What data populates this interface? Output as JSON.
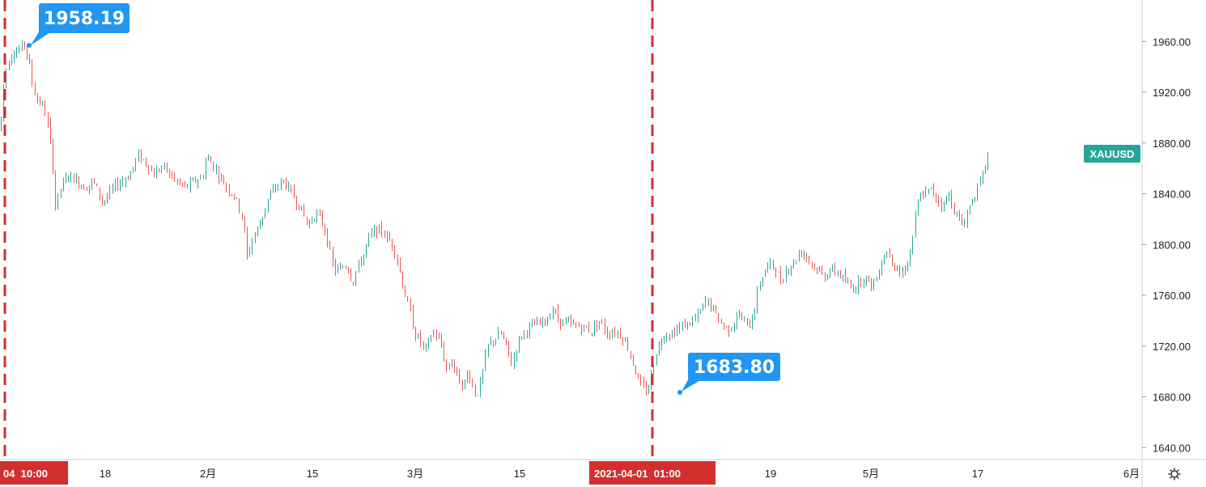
{
  "chart_data": {
    "type": "candlestick",
    "symbol": "XAUUSD",
    "price_axis": {
      "ticks": [
        1960,
        1920,
        1880,
        1840,
        1800,
        1760,
        1720,
        1680,
        1640
      ],
      "labels": [
        "1960.00",
        "1920.00",
        "1880.00",
        "1840.00",
        "1800.00",
        "1760.00",
        "1720.00",
        "1680.00",
        "1640.00"
      ]
    },
    "time_axis_labels": [
      "18",
      "2月",
      "15",
      "3月",
      "15",
      "19",
      "5月",
      "17",
      "6月"
    ],
    "crosshair_left_label": "04  10:00",
    "crosshair_right_label": "2021-04-01  01:00",
    "callouts": {
      "high": "1958.19",
      "low": "1683.80"
    },
    "last_price_tag": "XAUUSD",
    "colors": {
      "up": "#26a69a",
      "down": "#ef5350",
      "callout": "#2196f3",
      "marker": "#d32f2f",
      "tag": "#26a69a"
    },
    "price_path": [
      [
        0,
        1890
      ],
      [
        3,
        1920
      ],
      [
        6,
        1935
      ],
      [
        10,
        1945
      ],
      [
        15,
        1952
      ],
      [
        20,
        1952
      ],
      [
        25,
        1955
      ],
      [
        30,
        1958
      ],
      [
        35,
        1945
      ],
      [
        40,
        1925
      ],
      [
        45,
        1915
      ],
      [
        50,
        1912
      ],
      [
        55,
        1905
      ],
      [
        60,
        1890
      ],
      [
        65,
        1860
      ],
      [
        68,
        1830
      ],
      [
        75,
        1845
      ],
      [
        85,
        1855
      ],
      [
        95,
        1850
      ],
      [
        105,
        1845
      ],
      [
        115,
        1850
      ],
      [
        125,
        1835
      ],
      [
        130,
        1835
      ],
      [
        140,
        1845
      ],
      [
        150,
        1850
      ],
      [
        160,
        1855
      ],
      [
        170,
        1870
      ],
      [
        180,
        1865
      ],
      [
        190,
        1855
      ],
      [
        200,
        1862
      ],
      [
        210,
        1855
      ],
      [
        220,
        1848
      ],
      [
        230,
        1845
      ],
      [
        240,
        1850
      ],
      [
        250,
        1853
      ],
      [
        255,
        1870
      ],
      [
        260,
        1865
      ],
      [
        270,
        1855
      ],
      [
        280,
        1845
      ],
      [
        290,
        1838
      ],
      [
        300,
        1820
      ],
      [
        305,
        1790
      ],
      [
        312,
        1805
      ],
      [
        320,
        1815
      ],
      [
        330,
        1835
      ],
      [
        340,
        1845
      ],
      [
        350,
        1850
      ],
      [
        360,
        1840
      ],
      [
        370,
        1830
      ],
      [
        380,
        1815
      ],
      [
        390,
        1825
      ],
      [
        400,
        1815
      ],
      [
        405,
        1800
      ],
      [
        412,
        1780
      ],
      [
        420,
        1780
      ],
      [
        428,
        1785
      ],
      [
        435,
        1770
      ],
      [
        440,
        1780
      ],
      [
        448,
        1790
      ],
      [
        455,
        1805
      ],
      [
        462,
        1810
      ],
      [
        470,
        1812
      ],
      [
        478,
        1805
      ],
      [
        485,
        1800
      ],
      [
        492,
        1785
      ],
      [
        498,
        1765
      ],
      [
        505,
        1750
      ],
      [
        512,
        1730
      ],
      [
        518,
        1725
      ],
      [
        525,
        1715
      ],
      [
        530,
        1725
      ],
      [
        536,
        1732
      ],
      [
        545,
        1720
      ],
      [
        552,
        1700
      ],
      [
        558,
        1710
      ],
      [
        565,
        1695
      ],
      [
        572,
        1688
      ],
      [
        578,
        1700
      ],
      [
        583,
        1690
      ],
      [
        588,
        1680
      ],
      [
        595,
        1695
      ],
      [
        602,
        1720
      ],
      [
        610,
        1725
      ],
      [
        618,
        1730
      ],
      [
        625,
        1720
      ],
      [
        632,
        1705
      ],
      [
        638,
        1720
      ],
      [
        645,
        1730
      ],
      [
        655,
        1735
      ],
      [
        665,
        1738
      ],
      [
        675,
        1740
      ],
      [
        682,
        1750
      ],
      [
        690,
        1740
      ],
      [
        700,
        1738
      ],
      [
        710,
        1736
      ],
      [
        720,
        1735
      ],
      [
        730,
        1732
      ],
      [
        740,
        1740
      ],
      [
        750,
        1730
      ],
      [
        760,
        1732
      ],
      [
        768,
        1728
      ],
      [
        775,
        1720
      ],
      [
        780,
        1710
      ],
      [
        785,
        1700
      ],
      [
        790,
        1690
      ],
      [
        795,
        1685
      ],
      [
        800,
        1685
      ],
      [
        805,
        1700
      ],
      [
        810,
        1715
      ],
      [
        815,
        1722
      ],
      [
        820,
        1730
      ],
      [
        830,
        1730
      ],
      [
        840,
        1735
      ],
      [
        850,
        1738
      ],
      [
        860,
        1742
      ],
      [
        866,
        1748
      ],
      [
        872,
        1756
      ],
      [
        880,
        1750
      ],
      [
        888,
        1740
      ],
      [
        895,
        1735
      ],
      [
        902,
        1733
      ],
      [
        910,
        1745
      ],
      [
        918,
        1740
      ],
      [
        925,
        1735
      ],
      [
        932,
        1750
      ],
      [
        938,
        1770
      ],
      [
        945,
        1780
      ],
      [
        952,
        1785
      ],
      [
        958,
        1780
      ],
      [
        965,
        1770
      ],
      [
        972,
        1782
      ],
      [
        980,
        1785
      ],
      [
        988,
        1795
      ],
      [
        995,
        1792
      ],
      [
        1002,
        1785
      ],
      [
        1010,
        1780
      ],
      [
        1018,
        1775
      ],
      [
        1025,
        1780
      ],
      [
        1035,
        1778
      ],
      [
        1045,
        1770
      ],
      [
        1052,
        1765
      ],
      [
        1060,
        1770
      ],
      [
        1068,
        1775
      ],
      [
        1075,
        1768
      ],
      [
        1082,
        1772
      ],
      [
        1090,
        1790
      ],
      [
        1097,
        1795
      ],
      [
        1105,
        1785
      ],
      [
        1112,
        1775
      ],
      [
        1118,
        1782
      ],
      [
        1125,
        1795
      ],
      [
        1130,
        1820
      ],
      [
        1136,
        1838
      ],
      [
        1142,
        1840
      ],
      [
        1150,
        1843
      ],
      [
        1158,
        1836
      ],
      [
        1165,
        1830
      ],
      [
        1172,
        1840
      ],
      [
        1180,
        1825
      ],
      [
        1188,
        1815
      ],
      [
        1195,
        1825
      ],
      [
        1200,
        1835
      ],
      [
        1206,
        1842
      ],
      [
        1212,
        1850
      ],
      [
        1218,
        1866
      ],
      [
        1222,
        1872
      ]
    ]
  }
}
